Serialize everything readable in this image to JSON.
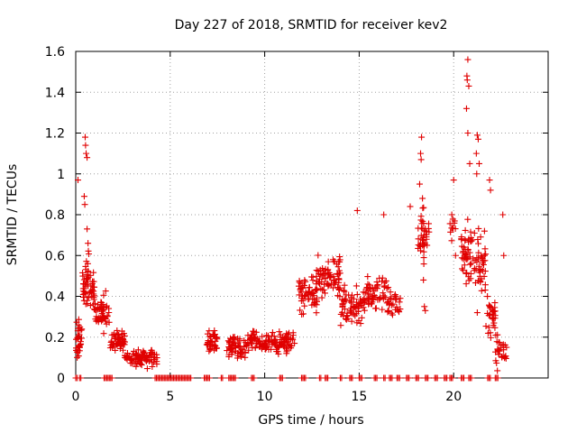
{
  "chart_data": {
    "type": "scatter",
    "title": "Day 227 of 2018, SRMTID for receiver kev2",
    "xlabel": "GPS time / hours",
    "ylabel": "SRMTID / TECUs",
    "xlim": [
      0,
      25
    ],
    "ylim": [
      0,
      1.6
    ],
    "xticks": [
      0,
      5,
      10,
      15,
      20
    ],
    "yticks": [
      0,
      0.2,
      0.4,
      0.6,
      0.8,
      1,
      1.2,
      1.4,
      1.6
    ],
    "xtick_labels": [
      "0",
      "5",
      "10",
      "15",
      "20"
    ],
    "ytick_labels": [
      "0",
      "0.2",
      "0.4",
      "0.6",
      "0.8",
      "1",
      "1.2",
      "1.4",
      "1.6"
    ],
    "grid": true,
    "legend": "none",
    "marker": "+",
    "color": "#e00000",
    "clusters": [
      {
        "x_start": 0.0,
        "x_end": 0.35,
        "y_base": 0.18,
        "y_spread": 0.14,
        "n": 30
      },
      {
        "x_start": 0.35,
        "x_end": 1.0,
        "y_base": 0.45,
        "y_spread": 0.2,
        "n": 60
      },
      {
        "x_start": 1.0,
        "x_end": 1.8,
        "y_base": 0.32,
        "y_spread": 0.12,
        "n": 55
      },
      {
        "x_start": 1.8,
        "x_end": 2.6,
        "y_base": 0.18,
        "y_spread": 0.08,
        "n": 55
      },
      {
        "x_start": 2.6,
        "x_end": 4.3,
        "y_base": 0.1,
        "y_spread": 0.06,
        "n": 90
      },
      {
        "x_start": 6.9,
        "x_end": 7.5,
        "y_base": 0.18,
        "y_spread": 0.08,
        "n": 40
      },
      {
        "x_start": 8.0,
        "x_end": 9.0,
        "y_base": 0.15,
        "y_spread": 0.07,
        "n": 60
      },
      {
        "x_start": 9.0,
        "x_end": 11.6,
        "y_base": 0.18,
        "y_spread": 0.08,
        "n": 140
      },
      {
        "x_start": 11.8,
        "x_end": 12.8,
        "y_base": 0.42,
        "y_spread": 0.14,
        "n": 60
      },
      {
        "x_start": 12.8,
        "x_end": 14.0,
        "y_base": 0.5,
        "y_spread": 0.14,
        "n": 70
      },
      {
        "x_start": 14.0,
        "x_end": 15.3,
        "y_base": 0.36,
        "y_spread": 0.12,
        "n": 70
      },
      {
        "x_start": 15.3,
        "x_end": 16.5,
        "y_base": 0.42,
        "y_spread": 0.12,
        "n": 55
      },
      {
        "x_start": 16.5,
        "x_end": 17.2,
        "y_base": 0.36,
        "y_spread": 0.1,
        "n": 30
      },
      {
        "x_start": 18.1,
        "x_end": 18.7,
        "y_base": 0.7,
        "y_spread": 0.18,
        "n": 40
      },
      {
        "x_start": 19.8,
        "x_end": 20.2,
        "y_base": 0.75,
        "y_spread": 0.15,
        "n": 10
      },
      {
        "x_start": 20.4,
        "x_end": 21.0,
        "y_base": 0.6,
        "y_spread": 0.22,
        "n": 45
      },
      {
        "x_start": 21.0,
        "x_end": 21.7,
        "y_base": 0.55,
        "y_spread": 0.25,
        "n": 45
      },
      {
        "x_start": 21.7,
        "x_end": 22.2,
        "y_base": 0.3,
        "y_spread": 0.15,
        "n": 30
      },
      {
        "x_start": 22.2,
        "x_end": 22.8,
        "y_base": 0.12,
        "y_spread": 0.12,
        "n": 30
      }
    ],
    "highlights": [
      {
        "x": 0.12,
        "y": 0.97
      },
      {
        "x": 0.5,
        "y": 1.18
      },
      {
        "x": 0.52,
        "y": 1.14
      },
      {
        "x": 0.55,
        "y": 1.1
      },
      {
        "x": 0.6,
        "y": 1.08
      },
      {
        "x": 0.45,
        "y": 0.89
      },
      {
        "x": 0.48,
        "y": 0.85
      },
      {
        "x": 0.6,
        "y": 0.73
      },
      {
        "x": 0.65,
        "y": 0.66
      },
      {
        "x": 18.3,
        "y": 1.18
      },
      {
        "x": 18.25,
        "y": 1.1
      },
      {
        "x": 18.28,
        "y": 1.07
      },
      {
        "x": 18.2,
        "y": 0.95
      },
      {
        "x": 18.35,
        "y": 0.88
      },
      {
        "x": 17.7,
        "y": 0.84
      },
      {
        "x": 14.9,
        "y": 0.82
      },
      {
        "x": 16.3,
        "y": 0.8
      },
      {
        "x": 20.0,
        "y": 0.97
      },
      {
        "x": 19.9,
        "y": 0.8
      },
      {
        "x": 20.1,
        "y": 0.6
      },
      {
        "x": 20.75,
        "y": 1.56
      },
      {
        "x": 20.7,
        "y": 1.48
      },
      {
        "x": 20.72,
        "y": 1.46
      },
      {
        "x": 20.8,
        "y": 1.43
      },
      {
        "x": 20.68,
        "y": 1.32
      },
      {
        "x": 20.75,
        "y": 1.2
      },
      {
        "x": 20.85,
        "y": 1.05
      },
      {
        "x": 21.25,
        "y": 1.19
      },
      {
        "x": 21.3,
        "y": 1.17
      },
      {
        "x": 21.2,
        "y": 1.1
      },
      {
        "x": 21.35,
        "y": 1.05
      },
      {
        "x": 21.22,
        "y": 1.0
      },
      {
        "x": 21.9,
        "y": 0.97
      },
      {
        "x": 21.95,
        "y": 0.92
      },
      {
        "x": 22.6,
        "y": 0.8
      },
      {
        "x": 22.65,
        "y": 0.6
      },
      {
        "x": 18.4,
        "y": 0.48
      },
      {
        "x": 18.45,
        "y": 0.35
      },
      {
        "x": 18.5,
        "y": 0.33
      }
    ],
    "zero_runs": [
      [
        0.0,
        0.1
      ],
      [
        0.2,
        0.3
      ],
      [
        1.5,
        1.8
      ],
      [
        1.85,
        1.95
      ],
      [
        4.2,
        6.1
      ],
      [
        6.8,
        7.1
      ],
      [
        7.7,
        7.8
      ],
      [
        8.1,
        8.5
      ],
      [
        9.3,
        9.5
      ],
      [
        10.8,
        11.0
      ],
      [
        11.95,
        12.2
      ],
      [
        12.9,
        13.0
      ],
      [
        13.2,
        13.4
      ],
      [
        14.0,
        14.1
      ],
      [
        14.5,
        14.7
      ],
      [
        15.0,
        15.2
      ],
      [
        15.8,
        16.0
      ],
      [
        16.3,
        16.4
      ],
      [
        16.6,
        16.8
      ],
      [
        17.0,
        17.2
      ],
      [
        17.5,
        17.7
      ],
      [
        18.0,
        18.2
      ],
      [
        18.5,
        18.7
      ],
      [
        19.0,
        19.2
      ],
      [
        19.5,
        19.7
      ],
      [
        19.8,
        20.0
      ],
      [
        20.4,
        20.6
      ],
      [
        20.8,
        21.0
      ],
      [
        21.8,
        22.0
      ],
      [
        22.2,
        22.35
      ]
    ]
  }
}
